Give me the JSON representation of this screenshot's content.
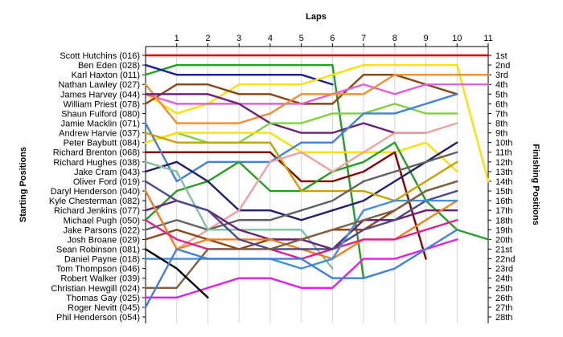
{
  "chart_data": {
    "type": "line",
    "title": "Laps",
    "ylabel_left": "Starting Positions",
    "ylabel_right": "Finishing Positions",
    "laps": [
      1,
      2,
      3,
      4,
      5,
      6,
      7,
      8,
      9,
      10,
      11
    ],
    "xlim": [
      0,
      11
    ],
    "ylim": [
      1,
      28
    ],
    "drivers": [
      "Scott Hutchins (016)",
      "Ben Eden (028)",
      "Karl Haxton (011)",
      "Nathan Lawley (027)",
      "James Harvey (044)",
      "William Priest (078)",
      "Shaun Fulford (080)",
      "Jamie Macklin (071)",
      "Andrew Harvie (037)",
      "Peter Baybutt (084)",
      "Richard Brenton (068)",
      "Richard Hughes (038)",
      "Jake Cram (043)",
      "Oliver Ford (019)",
      "Daryl Henderson (040)",
      "Kyle Chesterman (082)",
      "Richard Jenkins (077)",
      "Michael Pugh (050)",
      "Jake Parsons (022)",
      "Josh Broane (029)",
      "Sean Robinson (081)",
      "Daniel Payne (018)",
      "Tom Thompson (046)",
      "Robert Walker (039)",
      "Christian Hewgill (024)",
      "Thomas Gay (025)",
      "Roger Nevitt (045)",
      "Phil Henderson (054)"
    ],
    "finishing_positions": [
      "1st",
      "2nd",
      "3rd",
      "4th",
      "5th",
      "6th",
      "7th",
      "8th",
      "9th",
      "10th",
      "11th",
      "12th",
      "13th",
      "14th",
      "15th",
      "16th",
      "17th",
      "18th",
      "19th",
      "20th",
      "21st",
      "22nd",
      "23rd",
      "24th",
      "25th",
      "26th",
      "27th",
      "28th"
    ],
    "series": [
      {
        "name": "Scott Hutchins (016)",
        "color": "#d40000",
        "positions": [
          1,
          1,
          1,
          1,
          1,
          1,
          1,
          1,
          1,
          1,
          1,
          1
        ]
      },
      {
        "name": "Ben Eden (028)",
        "color": "#22a022",
        "positions": [
          3,
          2,
          2,
          2,
          2,
          2,
          2,
          24
        ]
      },
      {
        "name": "Karl Haxton (011)",
        "color": "#1c1ca0",
        "positions": [
          2,
          3,
          3,
          3,
          3,
          3,
          4
        ]
      },
      {
        "name": "Nathan Lawley (027)",
        "color": "#ffe000",
        "positions": [
          5,
          7,
          6,
          4,
          4,
          4,
          3,
          2,
          2,
          2,
          2,
          14
        ]
      },
      {
        "name": "James Harvey (044)",
        "color": "#8b4513",
        "positions": [
          6,
          4,
          4,
          5,
          5,
          6,
          6,
          3,
          3,
          4,
          5
        ]
      },
      {
        "name": "William Priest (078)",
        "color": "#e060e0",
        "positions": [
          5,
          6,
          6,
          6,
          6,
          6,
          5,
          4,
          5,
          4,
          4,
          4
        ]
      },
      {
        "name": "Shaun Fulford (080)",
        "color": "#f09030",
        "positions": [
          4,
          8,
          8,
          8,
          7,
          5,
          5,
          5,
          3,
          3,
          3,
          3
        ]
      },
      {
        "name": "Jamie Macklin (071)",
        "color": "#6b1f7b",
        "positions": [
          5,
          5,
          5,
          6,
          8,
          9,
          9,
          8,
          9,
          9
        ]
      },
      {
        "name": "Andrew Harvie (037)",
        "color": "#80d040",
        "positions": [
          10,
          9,
          10,
          10,
          8,
          8,
          7,
          7,
          6,
          7,
          7
        ]
      },
      {
        "name": "Peter Baybutt (084)",
        "color": "#ffe000",
        "positions": [
          10,
          9,
          9,
          9,
          9,
          11,
          11,
          11,
          11,
          10,
          13
        ]
      },
      {
        "name": "Richard Brenton (068)",
        "color": "#8b0000",
        "positions": [
          11,
          11,
          11,
          11,
          11,
          14,
          14,
          13,
          11,
          22
        ]
      },
      {
        "name": "Richard Hughes (038)",
        "color": "#4080e0",
        "positions": [
          8,
          14,
          12,
          12,
          12,
          10,
          10,
          7,
          7,
          6,
          5
        ]
      },
      {
        "name": "Jake Cram (043)",
        "color": "#22a022",
        "positions": [
          18,
          15,
          14,
          12,
          15,
          15,
          13,
          12,
          10,
          16,
          19,
          20
        ]
      },
      {
        "name": "Oliver Ford (019)",
        "color": "#20206e",
        "positions": [
          13,
          12,
          14,
          17,
          17,
          18,
          17,
          16,
          14,
          12,
          10
        ]
      },
      {
        "name": "Daryl Henderson (040)",
        "color": "#c8a000",
        "positions": [
          9,
          10,
          10,
          10,
          10,
          15,
          15,
          15,
          16,
          14,
          12
        ]
      },
      {
        "name": "Kyle Chesterman (082)",
        "color": "#f0a0a0",
        "positions": [
          15,
          21,
          19,
          17,
          12,
          11,
          13,
          11,
          9,
          9,
          8
        ]
      },
      {
        "name": "Richard Jenkins (077)",
        "color": "#606060",
        "positions": [
          19,
          18,
          19,
          18,
          18,
          17,
          16,
          14,
          13,
          12,
          11
        ]
      },
      {
        "name": "Michael Pugh (050)",
        "color": "#80c0a0",
        "positions": [
          12,
          13,
          19,
          19,
          19,
          19,
          23
        ]
      },
      {
        "name": "Jake Parsons (022)",
        "color": "#8b4513",
        "positions": [
          20,
          19,
          20,
          21,
          20,
          20,
          19,
          19,
          17,
          15,
          14
        ]
      },
      {
        "name": "Josh Broane (029)",
        "color": "#6b1f7b",
        "positions": [
          17,
          16,
          17,
          19,
          20,
          20,
          21,
          18,
          18,
          17,
          17
        ]
      },
      {
        "name": "Sean Robinson (081)",
        "color": "#f08020",
        "positions": [
          15,
          21,
          20,
          20,
          20,
          21,
          22,
          20,
          20,
          18,
          16
        ]
      },
      {
        "name": "Daniel Payne (018)",
        "color": "#e02090",
        "positions": [
          18,
          20,
          21,
          21,
          21,
          22,
          21,
          20,
          20,
          19,
          18
        ]
      },
      {
        "name": "Tom Thompson (046)",
        "color": "#4a4a8a",
        "positions": [
          14,
          16,
          17,
          20,
          21,
          21,
          21,
          19,
          18,
          16,
          15
        ]
      },
      {
        "name": "Robert Walker (039)",
        "color": "#4090e0",
        "positions": [
          22,
          22,
          22,
          22,
          22,
          23,
          22,
          17,
          16,
          16,
          16
        ]
      },
      {
        "name": "Christian Hewgill (024)",
        "color": "#806040",
        "positions": [
          25,
          25,
          21,
          21,
          21,
          20,
          19,
          18,
          17,
          15,
          14
        ]
      },
      {
        "name": "Thomas Gay (025)",
        "color": "#e020e0",
        "positions": [
          26,
          26,
          25,
          24,
          24,
          25,
          25,
          22,
          22,
          21,
          20
        ]
      },
      {
        "name": "Roger Nevitt (045)",
        "color": "#000000",
        "positions": [
          21,
          23,
          26
        ]
      },
      {
        "name": "Phil Henderson (054)",
        "color": "#4080e0",
        "positions": [
          27,
          21,
          22,
          22,
          22,
          22,
          24,
          24,
          23,
          21,
          19
        ]
      }
    ]
  }
}
